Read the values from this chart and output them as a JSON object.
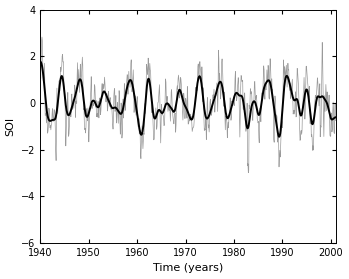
{
  "t_start": 1940,
  "t_end": 2001,
  "n_points": 732,
  "seed": 17,
  "xlim": [
    1940,
    2001
  ],
  "ylim": [
    -6,
    4
  ],
  "yticks": [
    -6,
    -4,
    -2,
    0,
    2,
    4
  ],
  "xticks": [
    1940,
    1950,
    1960,
    1970,
    1980,
    1990,
    2000
  ],
  "xlabel": "Time (years)",
  "ylabel": "SOI",
  "raw_color": "#888888",
  "raw_lw": 0.5,
  "raw_alpha": 0.85,
  "mtm_color": "#000000",
  "mtm_lw": 1.4,
  "background_color": "#ffffff",
  "figsize": [
    3.49,
    2.79
  ],
  "dpi": 100,
  "smooth_sigma": 5.0,
  "noise_scale": 1.0,
  "signal_scale": 0.9
}
